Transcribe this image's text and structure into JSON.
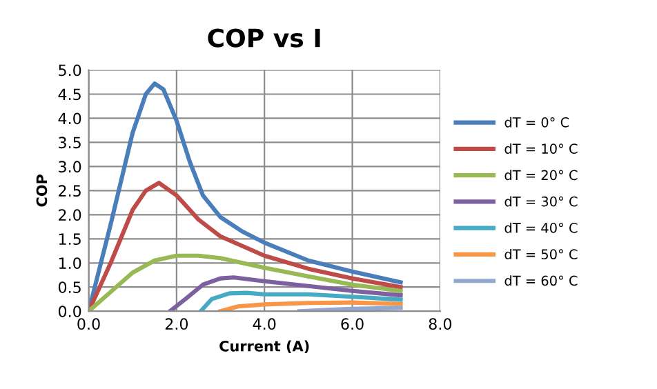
{
  "chart_data": {
    "type": "line",
    "title": "COP vs I",
    "xlabel": "Current (A)",
    "ylabel": "COP",
    "xlim": [
      0,
      8
    ],
    "xticks": [
      {
        "value": 0,
        "label": "0.0"
      },
      {
        "value": 2,
        "label": "2.0"
      },
      {
        "value": 4,
        "label": "4.0"
      },
      {
        "value": 6,
        "label": "6.0"
      },
      {
        "value": 8,
        "label": "8.0"
      }
    ],
    "ylim": [
      0,
      5
    ],
    "yticks": [
      {
        "value": 0,
        "label": "0.0"
      },
      {
        "value": 0.5,
        "label": "0.5"
      },
      {
        "value": 1,
        "label": "1.0"
      },
      {
        "value": 1.5,
        "label": "1.5"
      },
      {
        "value": 2,
        "label": "2.0"
      },
      {
        "value": 2.5,
        "label": "2.5"
      },
      {
        "value": 3,
        "label": "3.0"
      },
      {
        "value": 3.5,
        "label": "3.5"
      },
      {
        "value": 4,
        "label": "4.0"
      },
      {
        "value": 4.5,
        "label": "4.5"
      },
      {
        "value": 5,
        "label": "5.0"
      }
    ],
    "grid": true,
    "legend": "right",
    "marker": "none",
    "line_style": "solid",
    "series": [
      {
        "name": "dT = 0° C",
        "color": "#4a7ebb",
        "x": [
          0,
          0.5,
          1.0,
          1.3,
          1.5,
          1.7,
          2.0,
          2.3,
          2.6,
          3.0,
          3.5,
          4.0,
          5.0,
          6.0,
          7.1
        ],
        "values": [
          0,
          1.8,
          3.7,
          4.5,
          4.72,
          4.6,
          3.95,
          3.1,
          2.4,
          1.95,
          1.65,
          1.42,
          1.05,
          0.82,
          0.6
        ]
      },
      {
        "name": "dT = 10° C",
        "color": "#be4b48",
        "x": [
          0,
          0.5,
          1.0,
          1.3,
          1.6,
          2.0,
          2.5,
          3.0,
          4.0,
          5.0,
          6.0,
          7.1
        ],
        "values": [
          0,
          1.0,
          2.1,
          2.5,
          2.66,
          2.4,
          1.9,
          1.55,
          1.15,
          0.88,
          0.68,
          0.5
        ]
      },
      {
        "name": "dT = 20° C",
        "color": "#98b954",
        "x": [
          0,
          0.5,
          1.0,
          1.5,
          2.0,
          2.5,
          3.0,
          4.0,
          5.0,
          6.0,
          7.1
        ],
        "values": [
          0,
          0.4,
          0.8,
          1.05,
          1.15,
          1.15,
          1.1,
          0.9,
          0.72,
          0.55,
          0.42
        ]
      },
      {
        "name": "dT = 30° C",
        "color": "#7d60a0",
        "x": [
          1.85,
          2.2,
          2.6,
          3.0,
          3.3,
          4.0,
          5.0,
          6.0,
          7.1
        ],
        "values": [
          0,
          0.25,
          0.55,
          0.68,
          0.7,
          0.62,
          0.52,
          0.42,
          0.33
        ]
      },
      {
        "name": "dT = 40° C",
        "color": "#46aac5",
        "x": [
          2.55,
          2.8,
          3.2,
          3.6,
          4.0,
          5.0,
          6.0,
          7.1
        ],
        "values": [
          0,
          0.25,
          0.37,
          0.38,
          0.35,
          0.35,
          0.3,
          0.24
        ]
      },
      {
        "name": "dT = 50° C",
        "color": "#f79646",
        "x": [
          3.0,
          3.4,
          4.0,
          5.0,
          6.0,
          7.1
        ],
        "values": [
          0,
          0.1,
          0.14,
          0.17,
          0.18,
          0.15
        ]
      },
      {
        "name": "dT = 60° C",
        "color": "#92a9cf",
        "x": [
          4.8,
          5.5,
          6.0,
          7.1
        ],
        "values": [
          0,
          0.03,
          0.05,
          0.07
        ]
      }
    ]
  }
}
